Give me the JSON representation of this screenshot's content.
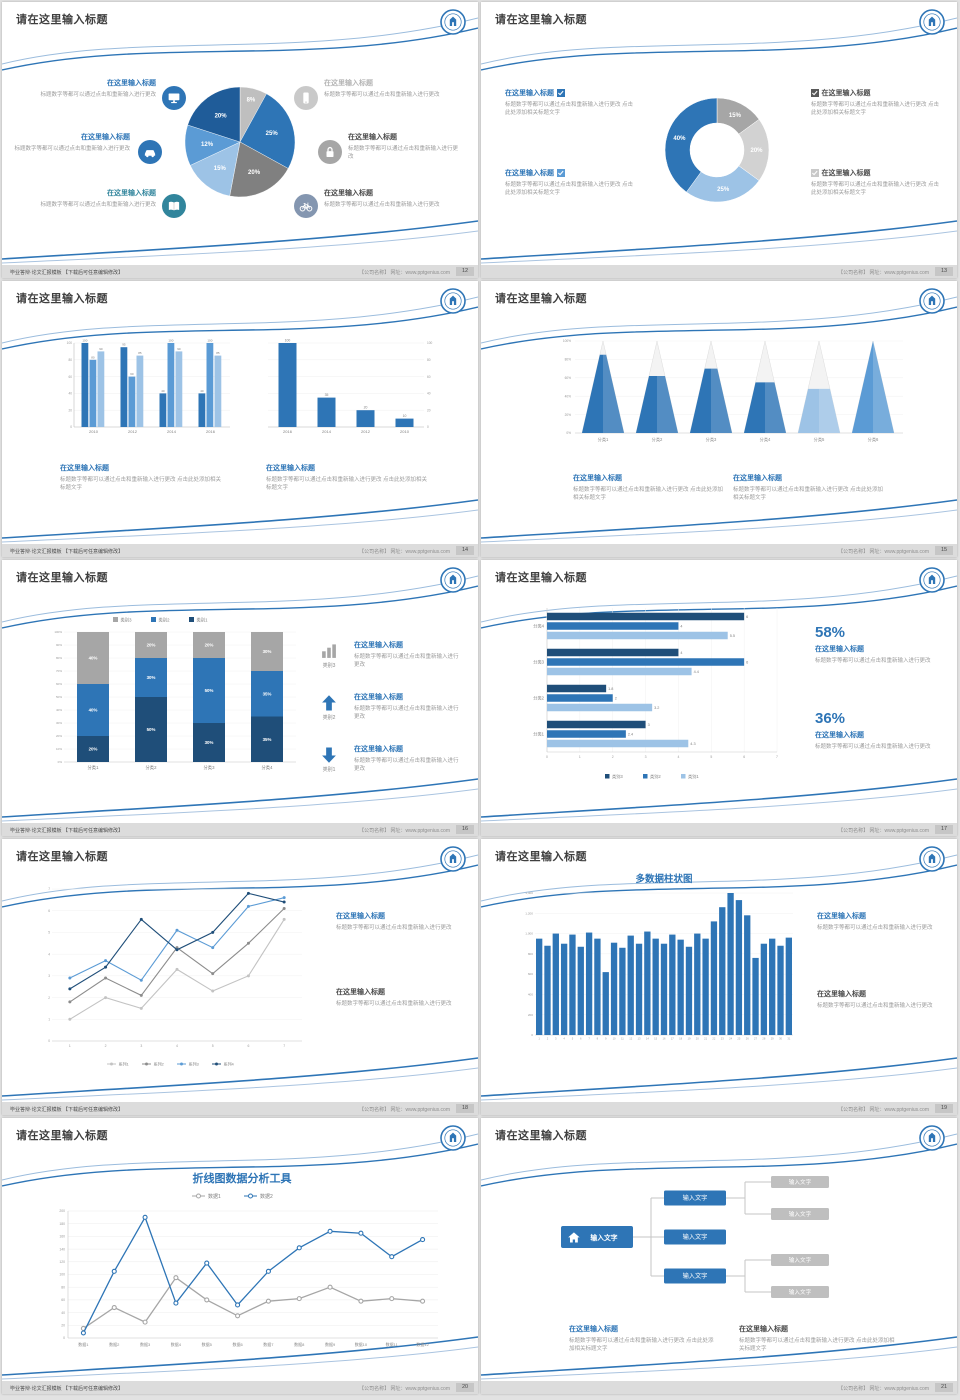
{
  "footer": {
    "left_text": "毕业答辩·论文汇报模板 【下载后可任意编辑修改】",
    "right_text": "【公司名称】 网址：www.pptgenius.com"
  },
  "common": {
    "slide_title": "请在这里输入标题",
    "block_title": "在这里输入标题",
    "body": "标题数字等都可以通过点击和重新输入进行更改",
    "body_long": "标题数字等都可以通过点击和重新输入进行更改 点击此处添加相关标题文字",
    "body_dot": "标题数字等都可以通过点击和重新输入进行更改。"
  },
  "slides": [
    {
      "page": "12"
    },
    {
      "page": "13"
    },
    {
      "page": "14"
    },
    {
      "page": "15"
    },
    {
      "page": "16",
      "items": [
        {
          "label": "类别3"
        },
        {
          "label": "类别2"
        },
        {
          "label": "类别1"
        }
      ]
    },
    {
      "page": "17",
      "stats": [
        {
          "value": "58%"
        },
        {
          "value": "36%"
        }
      ]
    },
    {
      "page": "18"
    },
    {
      "page": "19"
    },
    {
      "page": "20"
    },
    {
      "page": "21"
    }
  ],
  "chart_data": [
    {
      "id": "pie-composition",
      "type": "pie",
      "values": [
        8,
        25,
        20,
        15,
        12,
        20
      ],
      "labels": [
        "8%",
        "25%",
        "20%",
        "15%",
        "12%",
        "20%"
      ],
      "colors": [
        "#bfbfbf",
        "#2e75b6",
        "#808080",
        "#9dc3e6",
        "#5b9bd5",
        "#1f5c99"
      ]
    },
    {
      "id": "donut-composition",
      "type": "pie",
      "donut": true,
      "values": [
        15,
        20,
        25,
        40
      ],
      "labels": [
        "15%",
        "20%",
        "25%",
        "40%"
      ],
      "colors": [
        "#a6a6a6",
        "#d2d2d2",
        "#9dc3e6",
        "#2e75b6"
      ]
    },
    {
      "id": "grouped-bar",
      "type": "bar",
      "categories": [
        "2010",
        "2012",
        "2014",
        "2016"
      ],
      "ylim": [
        0,
        100
      ],
      "yticks": [
        "0",
        "20",
        "40",
        "60",
        "80",
        "100"
      ],
      "series": [
        {
          "name": "系列1",
          "color": "#2e75b6",
          "values": [
            100,
            95,
            40,
            40
          ]
        },
        {
          "name": "系列2",
          "color": "#5b9bd5",
          "values": [
            80,
            60,
            100,
            100
          ]
        },
        {
          "name": "系列3",
          "color": "#9dc3e6",
          "values": [
            90,
            85,
            90,
            85
          ]
        }
      ]
    },
    {
      "id": "single-bar",
      "type": "bar",
      "categories": [
        "2016",
        "2014",
        "2012",
        "2010"
      ],
      "ylim": [
        0,
        100
      ],
      "yticks": [
        "0",
        "20",
        "40",
        "60",
        "80",
        "100"
      ],
      "axis_side": "right",
      "series": [
        {
          "name": "系列1",
          "color": "#2e75b6",
          "values": [
            100,
            35,
            20,
            10
          ]
        }
      ]
    },
    {
      "id": "pyramid-cones",
      "type": "pyramid",
      "categories": [
        "分类1",
        "分类2",
        "分类3",
        "分类4",
        "分类5",
        "分类6"
      ],
      "values": [
        85,
        62,
        70,
        55,
        48,
        100
      ],
      "ylim": [
        0,
        100
      ],
      "colors": [
        "#2e75b6",
        "#2e75b6",
        "#2e75b6",
        "#2e75b6",
        "#9dc3e6",
        "#5b9bd5"
      ]
    },
    {
      "id": "stacked-percent-bar",
      "type": "stacked_bar",
      "categories": [
        "分类1",
        "分类2",
        "分类3",
        "分类4"
      ],
      "ylim": [
        0,
        100
      ],
      "legend_order": [
        "类别3",
        "类别2",
        "类别1"
      ],
      "series": [
        {
          "name": "类别1",
          "color": "#1f4e79",
          "values": [
            20,
            50,
            30,
            35
          ]
        },
        {
          "name": "类别2",
          "color": "#2e75b6",
          "values": [
            40,
            30,
            50,
            35
          ]
        },
        {
          "name": "类别3",
          "color": "#a6a6a6",
          "values": [
            40,
            20,
            20,
            30
          ]
        }
      ]
    },
    {
      "id": "horizontal-bar",
      "type": "bar_horizontal",
      "categories": [
        "分类1",
        "分类2",
        "分类3",
        "分类4"
      ],
      "xlim": [
        0,
        7
      ],
      "xticks": [
        "0",
        "1",
        "2",
        "3",
        "4",
        "5",
        "6",
        "7"
      ],
      "series": [
        {
          "name": "类别3",
          "color": "#1f4e79",
          "values": [
            3,
            1.8,
            4,
            6
          ]
        },
        {
          "name": "类别2",
          "color": "#2e75b6",
          "values": [
            2.4,
            2,
            6,
            4
          ]
        },
        {
          "name": "类别1",
          "color": "#9dc3e6",
          "values": [
            4.3,
            3.2,
            4.4,
            5.5
          ]
        }
      ]
    },
    {
      "id": "multi-line",
      "type": "line",
      "x": [
        "1",
        "2",
        "3",
        "4",
        "5",
        "6",
        "7"
      ],
      "ylim": [
        0,
        7
      ],
      "series": [
        {
          "name": "系列1",
          "color": "#c3c3c3",
          "values": [
            1,
            2,
            1.5,
            3.3,
            2.3,
            3,
            5.6
          ]
        },
        {
          "name": "系列2",
          "color": "#8c8c8c",
          "values": [
            1.8,
            2.9,
            2.1,
            4.3,
            3.1,
            4.5,
            6.1
          ]
        },
        {
          "name": "系列3",
          "color": "#5b9bd5",
          "values": [
            2.9,
            3.7,
            2.8,
            5.1,
            4.3,
            6.2,
            6.6
          ]
        },
        {
          "name": "系列4",
          "color": "#1f4e79",
          "values": [
            2.4,
            3.4,
            5.6,
            4.2,
            5,
            6.8,
            6.4
          ]
        }
      ]
    },
    {
      "id": "multi-column",
      "type": "bar",
      "title": "多数据柱状图",
      "color": "#2e75b6",
      "ylim": [
        0,
        1400
      ],
      "yticks": [
        "0",
        "200",
        "400",
        "600",
        "800",
        "1,000",
        "1,200",
        "1,400"
      ],
      "x_labels": [
        "1",
        "2",
        "3",
        "4",
        "5",
        "6",
        "7",
        "8",
        "9",
        "10",
        "11",
        "12",
        "13",
        "14",
        "15",
        "16",
        "17",
        "18",
        "19",
        "20",
        "21",
        "22",
        "23",
        "24",
        "25",
        "26",
        "27",
        "28",
        "29",
        "30",
        "31"
      ],
      "values": [
        950,
        880,
        1000,
        900,
        990,
        870,
        1010,
        950,
        620,
        910,
        860,
        980,
        900,
        1020,
        950,
        900,
        990,
        940,
        870,
        1000,
        950,
        1120,
        1260,
        1400,
        1330,
        1180,
        760,
        900,
        950,
        880,
        960
      ]
    },
    {
      "id": "line-analysis",
      "type": "line",
      "title": "折线图数据分析工具",
      "ylim": [
        0,
        200
      ],
      "categories": [
        "数据1",
        "数据2",
        "数据3",
        "数据4",
        "数据5",
        "数据6",
        "数据7",
        "数据8",
        "数据9",
        "数据10",
        "数据11",
        "数据12"
      ],
      "series": [
        {
          "name": "数据1",
          "color": "#a6a6a6",
          "values": [
            15,
            48,
            25,
            95,
            60,
            35,
            58,
            62,
            80,
            58,
            62,
            58
          ]
        },
        {
          "name": "数据2",
          "color": "#2e75b6",
          "values": [
            8,
            105,
            190,
            55,
            118,
            52,
            105,
            142,
            168,
            165,
            128,
            155
          ]
        }
      ]
    },
    {
      "id": "flow-diagram",
      "type": "diagram",
      "root": "输入文字",
      "branches": [
        "输入文字",
        "输入文字",
        "输入文字"
      ],
      "leaves": [
        "输入文字",
        "输入文字",
        "输入文字",
        "输入文字"
      ]
    }
  ]
}
